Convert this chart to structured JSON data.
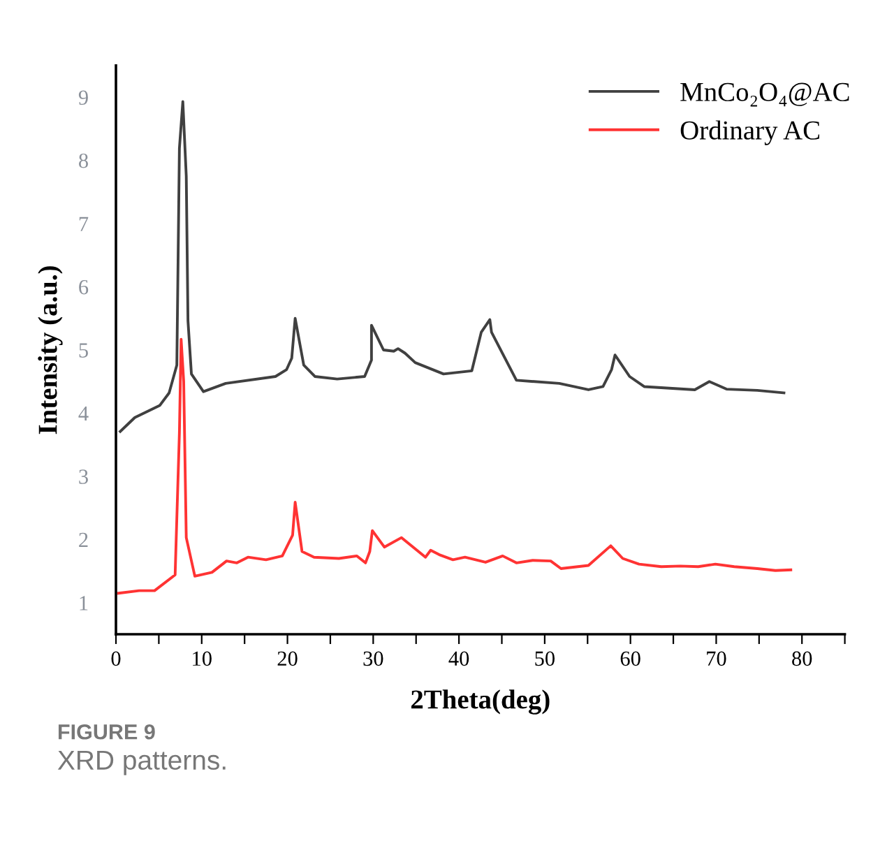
{
  "chart_data": {
    "type": "line",
    "xlabel": "2Theta(deg)",
    "ylabel": "Intensity (a.u.)",
    "xlim": [
      0,
      85
    ],
    "ylim": [
      0.5,
      9.5
    ],
    "xticks": [
      0,
      {
        "value": 5,
        "label": null
      },
      10,
      {
        "value": 15,
        "label": null
      },
      20,
      {
        "value": 25,
        "label": null
      },
      30,
      {
        "value": 35,
        "label": null
      },
      40,
      {
        "value": 45,
        "label": null
      },
      50,
      {
        "value": 55,
        "label": null
      },
      60,
      {
        "value": 65,
        "label": null
      },
      70,
      {
        "value": 75,
        "label": null
      },
      80,
      {
        "value": 85,
        "label": null
      }
    ],
    "yticks": [
      1,
      2,
      3,
      4,
      5,
      6,
      7,
      8,
      9
    ],
    "grid": false,
    "legend": "top right",
    "line_style": "solid",
    "marker": "none",
    "series": [
      {
        "name": "MnCo₂O₄@AC",
        "color": "#404040",
        "x": [
          0.5,
          2.2,
          5.1,
          6.2,
          7.1,
          7.4,
          7.8,
          8.2,
          8.4,
          8.8,
          10.2,
          12.8,
          18.6,
          19.9,
          20.5,
          20.9,
          21.9,
          23.2,
          25.8,
          29.0,
          29.8,
          29.8,
          31.2,
          32.4,
          32.9,
          33.7,
          34.9,
          38.2,
          41.5,
          42.6,
          43.6,
          43.8,
          46.7,
          51.7,
          55.1,
          56.8,
          57.8,
          58.2,
          59.9,
          61.6,
          67.5,
          69.2,
          71.2,
          74.8,
          77.9
        ],
        "values": [
          3.71,
          3.93,
          4.12,
          4.32,
          4.76,
          8.19,
          8.93,
          7.75,
          5.46,
          4.62,
          4.34,
          4.47,
          4.58,
          4.69,
          4.87,
          5.5,
          4.76,
          4.58,
          4.54,
          4.58,
          4.84,
          5.39,
          5.0,
          4.98,
          5.02,
          4.95,
          4.8,
          4.62,
          4.67,
          5.28,
          5.48,
          5.28,
          4.52,
          4.47,
          4.37,
          4.42,
          4.69,
          4.92,
          4.58,
          4.42,
          4.37,
          4.5,
          4.38,
          4.36,
          4.32
        ]
      },
      {
        "name": "Ordinary AC",
        "color": "#ff3333",
        "x": [
          0.3,
          2.7,
          4.5,
          6.9,
          7.4,
          7.6,
          7.9,
          8.2,
          9.2,
          11.2,
          12.9,
          14.1,
          15.4,
          17.5,
          19.4,
          20.6,
          20.9,
          21.7,
          23.1,
          26.0,
          28.1,
          29.1,
          29.6,
          29.9,
          31.3,
          33.3,
          36.1,
          36.7,
          37.7,
          39.3,
          40.7,
          43.1,
          45.1,
          46.7,
          48.6,
          50.7,
          51.9,
          55.1,
          57.7,
          59.1,
          61.0,
          63.6,
          65.8,
          67.9,
          69.9,
          72.1,
          74.8,
          76.9,
          78.7
        ],
        "values": [
          1.15,
          1.19,
          1.19,
          1.44,
          3.69,
          5.17,
          4.5,
          2.03,
          1.42,
          1.48,
          1.66,
          1.63,
          1.72,
          1.68,
          1.74,
          2.07,
          2.59,
          1.81,
          1.72,
          1.7,
          1.74,
          1.63,
          1.81,
          2.14,
          1.88,
          2.03,
          1.72,
          1.83,
          1.76,
          1.68,
          1.72,
          1.64,
          1.74,
          1.63,
          1.67,
          1.66,
          1.54,
          1.59,
          1.9,
          1.7,
          1.61,
          1.57,
          1.58,
          1.57,
          1.61,
          1.57,
          1.54,
          1.51,
          1.52
        ]
      }
    ],
    "annotations": [
      "FIGURE 9",
      "XRD patterns."
    ]
  }
}
